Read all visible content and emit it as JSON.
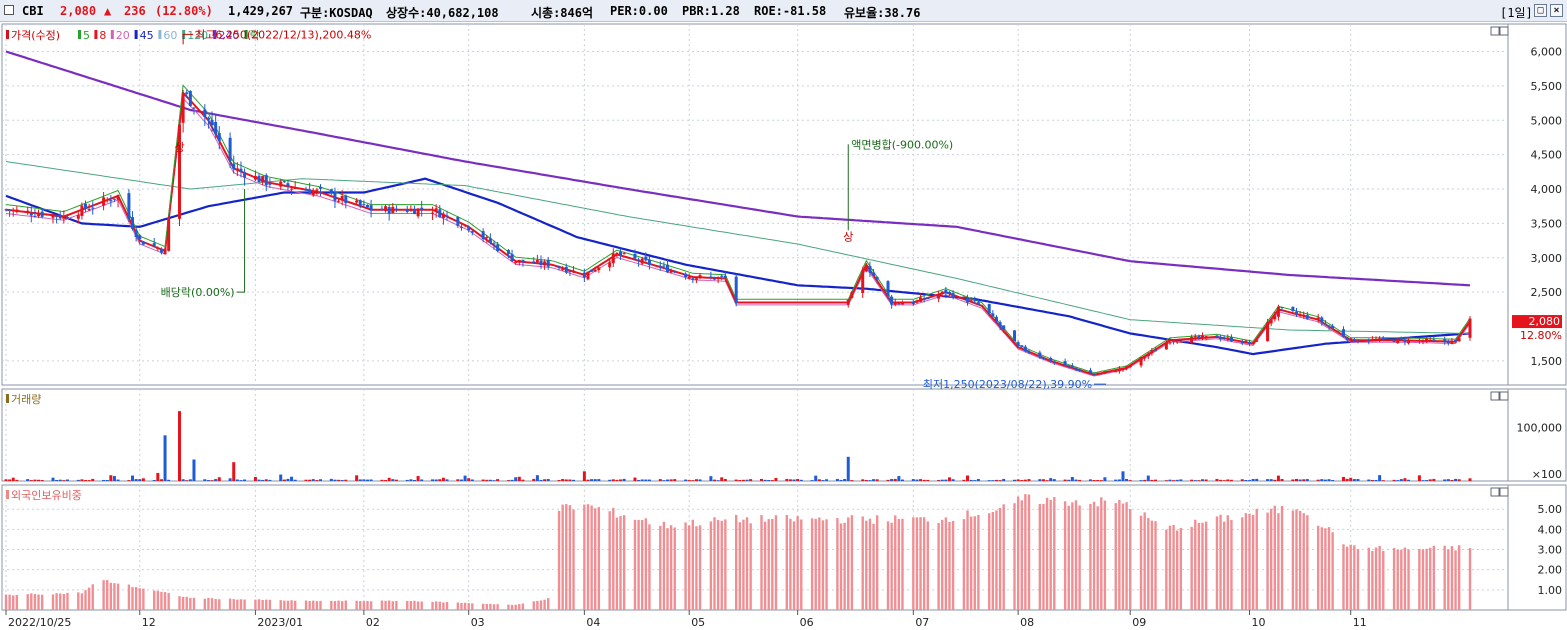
{
  "header": {
    "ticker": "CBI",
    "price": "2,080",
    "change_arrow": "▲",
    "change": "236",
    "change_pct": "(12.80%)",
    "volume": "1,429,267",
    "market": "구분:KOSDAQ",
    "listed_shares": "상장수:40,682,108",
    "market_cap": "시총:846억",
    "per": "PER:0.00",
    "pbr": "PBR:1.28",
    "roe": "ROE:-81.58",
    "float_ratio": "유보율:38.76",
    "period": "[1일]",
    "up_color": "#e5131c",
    "down_color": "#1f5bd6"
  },
  "chart_data": [
    {
      "type": "candlestick",
      "panel": "price",
      "legend": [
        {
          "label": "가격(수정)",
          "color": "#d4141b"
        },
        {
          "label": "5",
          "color": "#2ca02c"
        },
        {
          "label": "8",
          "color": "#e5131c"
        },
        {
          "label": "20",
          "color": "#d35fb7"
        },
        {
          "label": "45",
          "color": "#1424c8"
        },
        {
          "label": "60",
          "color": "#8bb7d6"
        },
        {
          "label": "120",
          "color": "#4aa57f"
        },
        {
          "label": "240",
          "color": "#7a2ec0"
        },
        {
          "label": "락",
          "color": "#2a8a2a"
        }
      ],
      "y_ticks": [
        "6,000",
        "5,500",
        "5,000",
        "4,500",
        "4,000",
        "3,500",
        "3,000",
        "2,500",
        "1,500"
      ],
      "ylim": [
        1150,
        6400
      ],
      "x_tick_labels": [
        "2022/10/25",
        "12",
        "2023/01",
        "02",
        "03",
        "04",
        "05",
        "06",
        "07",
        "08",
        "09",
        "10",
        "11"
      ],
      "x_ticks": [
        "2022-10-25",
        "2022-12-01",
        "2023-01-02",
        "2023-02-01",
        "2023-03-02",
        "2023-04-03",
        "2023-05-02",
        "2023-06-01",
        "2023-07-03",
        "2023-08-01",
        "2023-09-01",
        "2023-10-04",
        "2023-11-01"
      ],
      "x_range": [
        "2022-10-25",
        "2023-12-04"
      ],
      "price_series": {
        "name": "가격(수정)",
        "dates": [
          "2022-10-25",
          "2022-11-10",
          "2022-11-25",
          "2022-12-01",
          "2022-12-08",
          "2022-12-13",
          "2022-12-20",
          "2022-12-27",
          "2023-01-05",
          "2023-01-20",
          "2023-02-03",
          "2023-02-20",
          "2023-03-02",
          "2023-03-15",
          "2023-03-25",
          "2023-04-03",
          "2023-04-12",
          "2023-04-25",
          "2023-05-03",
          "2023-05-12",
          "2023-05-15",
          "2023-06-15",
          "2023-06-20",
          "2023-06-27",
          "2023-07-03",
          "2023-07-12",
          "2023-07-22",
          "2023-08-01",
          "2023-08-10",
          "2023-08-22",
          "2023-08-31",
          "2023-09-12",
          "2023-09-25",
          "2023-10-05",
          "2023-10-12",
          "2023-10-23",
          "2023-11-01",
          "2023-11-15",
          "2023-11-30",
          "2023-12-04"
        ],
        "values": [
          3700,
          3600,
          3900,
          3250,
          3100,
          5400,
          5000,
          4300,
          4100,
          3950,
          3700,
          3700,
          3450,
          2950,
          2900,
          2750,
          3050,
          2850,
          2720,
          2700,
          2350,
          2350,
          2900,
          2350,
          2350,
          2500,
          2300,
          1700,
          1500,
          1300,
          1400,
          1800,
          1850,
          1750,
          2250,
          2100,
          1800,
          1800,
          1780,
          2080
        ]
      },
      "series": [
        {
          "name": "45",
          "dates": [
            "2022-10-25",
            "2022-11-15",
            "2022-12-01",
            "2022-12-20",
            "2023-01-10",
            "2023-02-01",
            "2023-02-18",
            "2023-03-10",
            "2023-04-01",
            "2023-05-01",
            "2023-06-01",
            "2023-06-20",
            "2023-07-20",
            "2023-08-15",
            "2023-09-01",
            "2023-09-25",
            "2023-10-05",
            "2023-10-25",
            "2023-11-20",
            "2023-12-04"
          ],
          "values": [
            3900,
            3500,
            3450,
            3750,
            3950,
            3950,
            4150,
            3800,
            3300,
            2900,
            2600,
            2550,
            2400,
            2150,
            1900,
            1700,
            1600,
            1750,
            1850,
            1900
          ]
        },
        {
          "name": "240",
          "dates": [
            "2022-10-25",
            "2022-12-15",
            "2023-01-15",
            "2023-03-01",
            "2023-04-15",
            "2023-06-01",
            "2023-07-15",
            "2023-09-01",
            "2023-10-15",
            "2023-12-04"
          ],
          "values": [
            6000,
            5150,
            4850,
            4400,
            4000,
            3600,
            3450,
            2950,
            2750,
            2600
          ]
        },
        {
          "name": "120",
          "dates": [
            "2022-10-25",
            "2022-12-15",
            "2023-01-15",
            "2023-03-01",
            "2023-04-15",
            "2023-06-01",
            "2023-07-15",
            "2023-09-01",
            "2023-10-15",
            "2023-12-04"
          ],
          "values": [
            4400,
            4000,
            4150,
            4050,
            3600,
            3200,
            2700,
            2100,
            1950,
            1900
          ]
        }
      ],
      "annotations": [
        {
          "text": "최고6,250(2022/12/13),200.48%",
          "date": "2022-12-13",
          "value": 6250
        },
        {
          "text": "상",
          "date": "2022-12-12",
          "value": 4550
        },
        {
          "text": "배당락(0.00%)",
          "date": "2022-12-30",
          "value": 2500
        },
        {
          "text": "액면병합(-900.00%)",
          "date": "2023-06-15",
          "value": 4650
        },
        {
          "text": "상",
          "date": "2023-06-15",
          "value": 3250
        },
        {
          "text": "최저1,250(2023/08/22),39.90%",
          "date": "2023-08-22",
          "value": 1250
        }
      ],
      "last_price_label": "2,080",
      "last_change_label": "12.80%"
    },
    {
      "type": "bar",
      "panel": "volume",
      "title": "거래량",
      "y_ticks": [
        "100,000",
        "×100"
      ],
      "dates": [
        "2022-11-05",
        "2022-12-06",
        "2022-12-08",
        "2022-12-12",
        "2022-12-16",
        "2022-12-27",
        "2023-01-09",
        "2023-03-01",
        "2023-04-03",
        "2023-05-08",
        "2023-06-15",
        "2023-08-30",
        "2023-10-12",
        "2023-11-01",
        "2023-12-04"
      ],
      "values": [
        10000,
        15000,
        85000,
        130000,
        40000,
        35000,
        12000,
        10000,
        18000,
        9000,
        45000,
        18000,
        10000,
        6000,
        5000
      ]
    },
    {
      "type": "bar",
      "panel": "foreign_holding",
      "title": "외국인보유비중",
      "y_ticks": [
        "5.00",
        "4.00",
        "3.00",
        "2.00",
        "1.00"
      ],
      "ylim": [
        0,
        6.2
      ],
      "dates": [
        "2022-10-25",
        "2022-11-15",
        "2022-11-20",
        "2022-12-15",
        "2023-01-15",
        "2023-02-15",
        "2023-03-15",
        "2023-03-25",
        "2023-03-26",
        "2023-04-03",
        "2023-04-25",
        "2023-05-15",
        "2023-07-10",
        "2023-07-31",
        "2023-08-01",
        "2023-08-31",
        "2023-09-10",
        "2023-10-05",
        "2023-10-18",
        "2023-11-01",
        "2023-11-15",
        "2023-12-04"
      ],
      "values": [
        0.75,
        0.85,
        1.5,
        0.6,
        0.45,
        0.45,
        0.25,
        0.6,
        5.0,
        5.2,
        4.2,
        4.5,
        4.5,
        5.1,
        5.5,
        5.3,
        4.0,
        4.8,
        5.1,
        3.1,
        3.0,
        3.1
      ]
    }
  ]
}
